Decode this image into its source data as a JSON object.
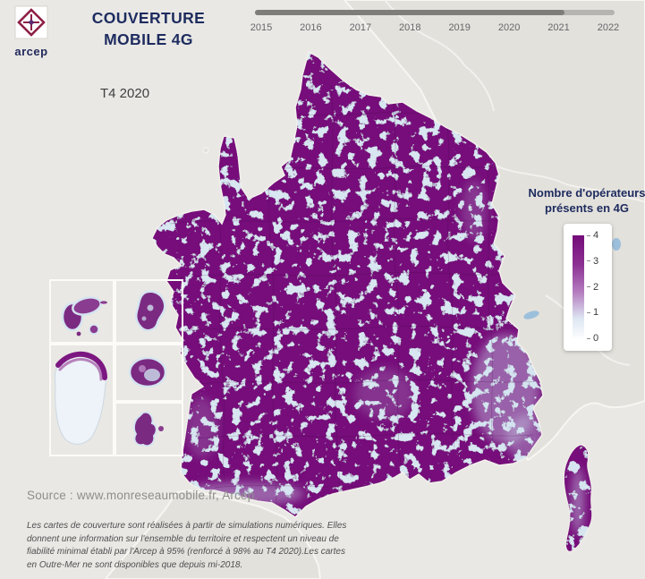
{
  "header": {
    "logo_text": "arcep",
    "title_line1": "COUVERTURE",
    "title_line2": "MOBILE 4G",
    "period_label": "T4 2020"
  },
  "timeline": {
    "years": [
      "2015",
      "2016",
      "2017",
      "2018",
      "2019",
      "2020",
      "2021",
      "2022"
    ],
    "progress_percent": 86
  },
  "legend": {
    "title_line1": "Nombre d'opérateurs",
    "title_line2": "présents en 4G",
    "ticks": [
      "4",
      "3",
      "2",
      "1",
      "0"
    ],
    "scale_colors": [
      "#740b79",
      "#8c3193",
      "#b57ec0",
      "#dde6f2",
      "#fdfeff"
    ]
  },
  "map": {
    "metropole_fill": "#760c7a",
    "speckle_color": "#d8e6f1",
    "background": "#e9e8e4",
    "neighbor_land": "#e3e1dc"
  },
  "footer": {
    "source": "Source : www.monreseaumobile.fr, Arcep.",
    "disclaimer": "Les cartes de couverture sont réalisées à partir de simulations numériques. Elles donnent une information sur l'ensemble du territoire et respectent un niveau de fiabilité minimal établi par l'Arcep à 95% (renforcé à 98% au T4 2020).Les cartes en Outre-Mer ne sont disponibles que depuis mi-2018."
  }
}
